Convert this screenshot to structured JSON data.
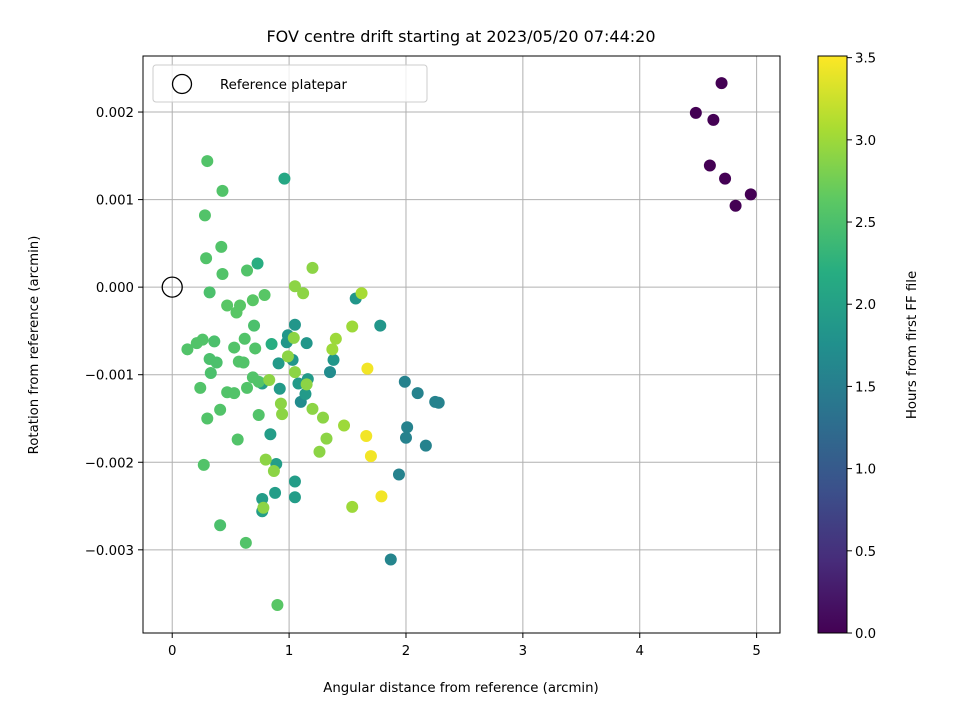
{
  "chart_data": {
    "type": "scatter",
    "title": "FOV centre drift starting at 2023/05/20 07:44:20",
    "xlabel": "Angular distance from reference (arcmin)",
    "ylabel": "Rotation from reference (arcmin)",
    "xlim": [
      -0.25,
      5.2
    ],
    "ylim": [
      -0.00395,
      0.00264
    ],
    "xticks": [
      0,
      1,
      2,
      3,
      4,
      5
    ],
    "xtick_labels": [
      "0",
      "1",
      "2",
      "3",
      "4",
      "5"
    ],
    "yticks": [
      -0.003,
      -0.002,
      -0.001,
      0.0,
      0.001,
      0.002
    ],
    "ytick_labels": [
      "−0.003",
      "−0.002",
      "−0.001",
      "0.000",
      "0.001",
      "0.002"
    ],
    "grid": true,
    "legend": {
      "placement": "top-left",
      "entries": [
        "Reference platepar"
      ]
    },
    "colormap": "viridis",
    "colorbar": {
      "label": "Hours from first FF file",
      "range": [
        0.0,
        3.51
      ],
      "ticks": [
        0.0,
        0.5,
        1.0,
        1.5,
        2.0,
        2.5,
        3.0,
        3.5
      ],
      "tick_labels": [
        "0.0",
        "0.5",
        "1.0",
        "1.5",
        "2.0",
        "2.5",
        "3.0",
        "3.5"
      ]
    },
    "reference_point": {
      "x": 0.0,
      "y": 0.0
    },
    "points": [
      {
        "x": 4.48,
        "y": 0.00199,
        "c": 0.0
      },
      {
        "x": 4.7,
        "y": 0.00233,
        "c": 0.0
      },
      {
        "x": 4.63,
        "y": 0.00191,
        "c": 0.0
      },
      {
        "x": 4.6,
        "y": 0.00139,
        "c": 0.0
      },
      {
        "x": 4.73,
        "y": 0.00124,
        "c": 0.0
      },
      {
        "x": 4.95,
        "y": 0.00106,
        "c": 0.0
      },
      {
        "x": 4.82,
        "y": 0.00093,
        "c": 0.0
      },
      {
        "x": 1.99,
        "y": -0.00108,
        "c": 1.55
      },
      {
        "x": 2.1,
        "y": -0.00121,
        "c": 1.55
      },
      {
        "x": 2.25,
        "y": -0.00131,
        "c": 1.55
      },
      {
        "x": 2.28,
        "y": -0.00132,
        "c": 1.55
      },
      {
        "x": 2.01,
        "y": -0.0016,
        "c": 1.55
      },
      {
        "x": 2.0,
        "y": -0.00172,
        "c": 1.55
      },
      {
        "x": 2.17,
        "y": -0.00181,
        "c": 1.55
      },
      {
        "x": 1.94,
        "y": -0.00214,
        "c": 1.55
      },
      {
        "x": 1.87,
        "y": -0.00311,
        "c": 1.6
      },
      {
        "x": 1.35,
        "y": -0.00097,
        "c": 1.7
      },
      {
        "x": 1.1,
        "y": -0.00131,
        "c": 1.7
      },
      {
        "x": 1.57,
        "y": -0.00013,
        "c": 1.85
      },
      {
        "x": 1.78,
        "y": -0.00044,
        "c": 1.85
      },
      {
        "x": 1.38,
        "y": -0.00083,
        "c": 1.85
      },
      {
        "x": 1.15,
        "y": -0.00064,
        "c": 1.85
      },
      {
        "x": 1.05,
        "y": -0.00043,
        "c": 1.85
      },
      {
        "x": 1.03,
        "y": -0.00083,
        "c": 1.85
      },
      {
        "x": 0.99,
        "y": -0.00055,
        "c": 1.85
      },
      {
        "x": 0.98,
        "y": -0.00063,
        "c": 1.85
      },
      {
        "x": 0.91,
        "y": -0.00087,
        "c": 1.9
      },
      {
        "x": 0.92,
        "y": -0.00116,
        "c": 1.9
      },
      {
        "x": 1.08,
        "y": -0.0011,
        "c": 1.9
      },
      {
        "x": 1.14,
        "y": -0.00122,
        "c": 1.9
      },
      {
        "x": 1.16,
        "y": -0.00105,
        "c": 1.9
      },
      {
        "x": 0.77,
        "y": -0.0011,
        "c": 1.95
      },
      {
        "x": 0.84,
        "y": -0.00168,
        "c": 1.95
      },
      {
        "x": 0.89,
        "y": -0.00202,
        "c": 1.95
      },
      {
        "x": 1.05,
        "y": -0.00222,
        "c": 1.95
      },
      {
        "x": 1.05,
        "y": -0.0024,
        "c": 1.95
      },
      {
        "x": 0.88,
        "y": -0.00235,
        "c": 1.95
      },
      {
        "x": 0.77,
        "y": -0.00242,
        "c": 1.95
      },
      {
        "x": 0.77,
        "y": -0.00256,
        "c": 1.95
      },
      {
        "x": 0.96,
        "y": 0.00124,
        "c": 2.1
      },
      {
        "x": 0.73,
        "y": 0.00027,
        "c": 2.2
      },
      {
        "x": 0.85,
        "y": -0.00065,
        "c": 2.2
      },
      {
        "x": 0.3,
        "y": 0.00144,
        "c": 2.55
      },
      {
        "x": 0.43,
        "y": 0.0011,
        "c": 2.55
      },
      {
        "x": 0.28,
        "y": 0.00082,
        "c": 2.55
      },
      {
        "x": 0.42,
        "y": 0.00046,
        "c": 2.55
      },
      {
        "x": 0.29,
        "y": 0.00033,
        "c": 2.55
      },
      {
        "x": 0.43,
        "y": 0.00015,
        "c": 2.55
      },
      {
        "x": 0.32,
        "y": -6e-05,
        "c": 2.5
      },
      {
        "x": 0.64,
        "y": 0.00019,
        "c": 2.55
      },
      {
        "x": 0.79,
        "y": -9e-05,
        "c": 2.6
      },
      {
        "x": 0.69,
        "y": -0.00015,
        "c": 2.6
      },
      {
        "x": 0.58,
        "y": -0.00021,
        "c": 2.6
      },
      {
        "x": 0.47,
        "y": -0.00021,
        "c": 2.6
      },
      {
        "x": 0.55,
        "y": -0.00029,
        "c": 2.6
      },
      {
        "x": 0.7,
        "y": -0.00044,
        "c": 2.5
      },
      {
        "x": 0.62,
        "y": -0.00059,
        "c": 2.55
      },
      {
        "x": 0.53,
        "y": -0.00069,
        "c": 2.55
      },
      {
        "x": 0.71,
        "y": -0.0007,
        "c": 2.55
      },
      {
        "x": 0.36,
        "y": -0.00062,
        "c": 2.5
      },
      {
        "x": 0.26,
        "y": -0.0006,
        "c": 2.55
      },
      {
        "x": 0.21,
        "y": -0.00064,
        "c": 2.55
      },
      {
        "x": 0.13,
        "y": -0.00071,
        "c": 2.55
      },
      {
        "x": 0.32,
        "y": -0.00082,
        "c": 2.5
      },
      {
        "x": 0.38,
        "y": -0.00086,
        "c": 2.5
      },
      {
        "x": 0.57,
        "y": -0.00085,
        "c": 2.55
      },
      {
        "x": 0.61,
        "y": -0.00086,
        "c": 2.55
      },
      {
        "x": 0.33,
        "y": -0.00098,
        "c": 2.5
      },
      {
        "x": 0.69,
        "y": -0.00103,
        "c": 2.55
      },
      {
        "x": 0.24,
        "y": -0.00115,
        "c": 2.55
      },
      {
        "x": 0.47,
        "y": -0.0012,
        "c": 2.55
      },
      {
        "x": 0.53,
        "y": -0.00121,
        "c": 2.55
      },
      {
        "x": 0.64,
        "y": -0.00115,
        "c": 2.55
      },
      {
        "x": 0.74,
        "y": -0.00108,
        "c": 2.55
      },
      {
        "x": 0.41,
        "y": -0.0014,
        "c": 2.55
      },
      {
        "x": 0.3,
        "y": -0.0015,
        "c": 2.55
      },
      {
        "x": 0.74,
        "y": -0.00146,
        "c": 2.55
      },
      {
        "x": 0.56,
        "y": -0.00174,
        "c": 2.55
      },
      {
        "x": 0.27,
        "y": -0.00203,
        "c": 2.55
      },
      {
        "x": 0.41,
        "y": -0.00272,
        "c": 2.5
      },
      {
        "x": 0.63,
        "y": -0.00292,
        "c": 2.55
      },
      {
        "x": 0.9,
        "y": -0.00363,
        "c": 2.6
      },
      {
        "x": 1.2,
        "y": 0.00022,
        "c": 2.9
      },
      {
        "x": 1.05,
        "y": 1e-05,
        "c": 2.9
      },
      {
        "x": 1.12,
        "y": -7e-05,
        "c": 2.9
      },
      {
        "x": 1.04,
        "y": -0.00058,
        "c": 2.9
      },
      {
        "x": 0.99,
        "y": -0.00079,
        "c": 2.9
      },
      {
        "x": 1.05,
        "y": -0.00097,
        "c": 2.9
      },
      {
        "x": 1.15,
        "y": -0.00111,
        "c": 2.9
      },
      {
        "x": 0.83,
        "y": -0.00106,
        "c": 2.9
      },
      {
        "x": 0.93,
        "y": -0.00133,
        "c": 2.9
      },
      {
        "x": 0.94,
        "y": -0.00145,
        "c": 2.9
      },
      {
        "x": 1.2,
        "y": -0.00139,
        "c": 2.9
      },
      {
        "x": 1.29,
        "y": -0.00149,
        "c": 2.9
      },
      {
        "x": 1.32,
        "y": -0.00173,
        "c": 2.9
      },
      {
        "x": 1.26,
        "y": -0.00188,
        "c": 2.9
      },
      {
        "x": 0.8,
        "y": -0.00197,
        "c": 2.9
      },
      {
        "x": 0.87,
        "y": -0.0021,
        "c": 2.9
      },
      {
        "x": 0.78,
        "y": -0.00252,
        "c": 2.9
      },
      {
        "x": 1.54,
        "y": -0.00045,
        "c": 3.0
      },
      {
        "x": 1.4,
        "y": -0.00059,
        "c": 3.0
      },
      {
        "x": 1.37,
        "y": -0.00071,
        "c": 3.0
      },
      {
        "x": 1.47,
        "y": -0.00158,
        "c": 3.0
      },
      {
        "x": 1.54,
        "y": -0.00251,
        "c": 3.0
      },
      {
        "x": 1.62,
        "y": -7e-05,
        "c": 3.05
      },
      {
        "x": 1.67,
        "y": -0.00093,
        "c": 3.45
      },
      {
        "x": 1.66,
        "y": -0.0017,
        "c": 3.45
      },
      {
        "x": 1.7,
        "y": -0.00193,
        "c": 3.45
      },
      {
        "x": 1.79,
        "y": -0.00239,
        "c": 3.45
      }
    ]
  }
}
